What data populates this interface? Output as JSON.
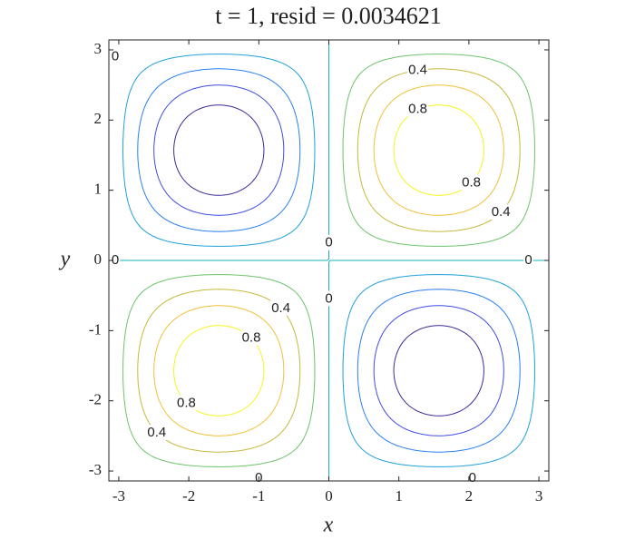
{
  "chart_data": {
    "type": "contour",
    "title": "t = 1,  resid = 0.0034621",
    "x_label": "x",
    "y_label": "y",
    "xlim": [
      -3.14159,
      3.14159
    ],
    "ylim": [
      -3.14159,
      3.14159
    ],
    "xticks": [
      -3,
      -2,
      -1,
      0,
      1,
      2,
      3
    ],
    "yticks": [
      -3,
      -2,
      -1,
      0,
      1,
      2,
      3
    ],
    "levels": [
      -0.8,
      -0.6,
      -0.4,
      -0.2,
      0,
      0.2,
      0.4,
      0.6,
      0.8
    ],
    "colors": [
      "#3b2a98",
      "#3e4de0",
      "#2a7ff0",
      "#1fa0d8",
      "#14b3b4",
      "#6cc36a",
      "#c4b93a",
      "#f0c038",
      "#f5f41c"
    ]
  }
}
